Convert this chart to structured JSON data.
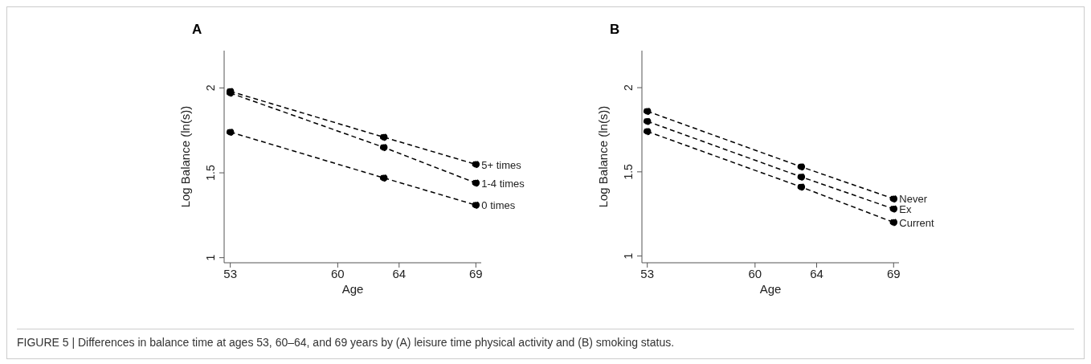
{
  "chart_data": [
    {
      "type": "line",
      "title": "A",
      "xlabel": "Age",
      "ylabel": "Log Balance (ln(s))",
      "x": [
        53,
        63,
        69
      ],
      "xlim": [
        52.6,
        69.35
      ],
      "xticks": [
        53,
        60,
        64,
        69
      ],
      "ylim": [
        0.97,
        2.22
      ],
      "yticks": [
        1,
        1.5,
        2
      ],
      "grid": false,
      "legend": false,
      "marker": "circle",
      "line_style": "dashed",
      "series": [
        {
          "name": "5+ times",
          "color": "#000000",
          "values": [
            1.98,
            1.71,
            1.55
          ]
        },
        {
          "name": "1-4 times",
          "color": "#000000",
          "values": [
            1.97,
            1.65,
            1.44
          ]
        },
        {
          "name": "0 times",
          "color": "#000000",
          "values": [
            1.74,
            1.47,
            1.31
          ]
        }
      ],
      "annotations": [
        "FIGURE 5 | Differences in balance time at ages 53, 60–64, and 69 years by (A) leisure time physical activity and (B) smoking status."
      ]
    },
    {
      "type": "line",
      "title": "B",
      "xlabel": "Age",
      "ylabel": "Log Balance (ln(s))",
      "x": [
        53,
        63,
        69
      ],
      "xlim": [
        52.65,
        69.35
      ],
      "xticks": [
        53,
        60,
        64,
        69
      ],
      "ylim": [
        0.96,
        2.22
      ],
      "yticks": [
        1,
        1.5,
        2
      ],
      "grid": false,
      "legend": false,
      "marker": "circle",
      "line_style": "dashed",
      "series": [
        {
          "name": "Never",
          "color": "#000000",
          "values": [
            1.86,
            1.53,
            1.34
          ]
        },
        {
          "name": "Ex",
          "color": "#000000",
          "values": [
            1.8,
            1.47,
            1.28
          ]
        },
        {
          "name": "Current",
          "color": "#000000",
          "values": [
            1.74,
            1.41,
            1.2
          ]
        }
      ]
    }
  ]
}
